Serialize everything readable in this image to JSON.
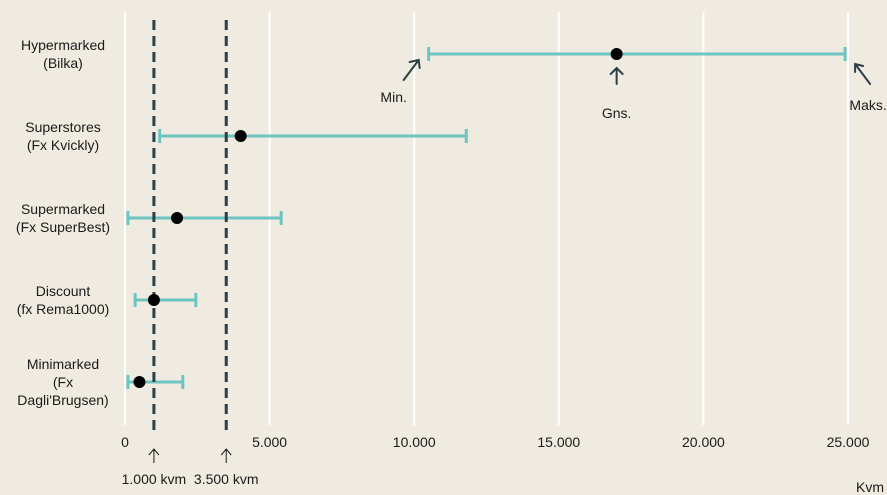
{
  "chart_data": {
    "type": "range",
    "title": "",
    "xlabel": "Kvm",
    "ylabel": "",
    "xlim": [
      0,
      25000
    ],
    "x_ticks": [
      0,
      5000,
      10000,
      15000,
      20000,
      25000
    ],
    "x_tick_labels": [
      "0",
      "5.000",
      "10.000",
      "15.000",
      "20.000",
      "25.000"
    ],
    "grid": "vertical",
    "categories": [
      {
        "label_lines": [
          "Hypermarked",
          "(Bilka)"
        ],
        "min": 10500,
        "avg": 17000,
        "max": 24900
      },
      {
        "label_lines": [
          "Superstores",
          "(Fx Kvickly)"
        ],
        "min": 1200,
        "avg": 4000,
        "max": 11800
      },
      {
        "label_lines": [
          "Supermarked",
          "(Fx SuperBest)"
        ],
        "min": 100,
        "avg": 1800,
        "max": 5400
      },
      {
        "label_lines": [
          "Discount",
          "(fx Rema1000)"
        ],
        "min": 350,
        "avg": 1000,
        "max": 2450
      },
      {
        "label_lines": [
          "Minimarked",
          "(Fx",
          "Dagli'Brugsen)"
        ],
        "min": 100,
        "avg": 500,
        "max": 2000
      }
    ],
    "reference_lines": [
      {
        "value": 1000,
        "label": "1.000 kvm"
      },
      {
        "value": 3500,
        "label": "3.500 kvm"
      }
    ],
    "annotations": [
      {
        "text": "Min.",
        "target": "min",
        "category_index": 0
      },
      {
        "text": "Gns.",
        "target": "avg",
        "category_index": 0
      },
      {
        "text": "Maks.",
        "target": "max",
        "category_index": 0
      }
    ],
    "colors": {
      "background": "#f0ebe1",
      "range": "#6cc5c0",
      "point": "#000000",
      "reference_line": "#2a3f47",
      "grid": "#ffffff"
    }
  }
}
